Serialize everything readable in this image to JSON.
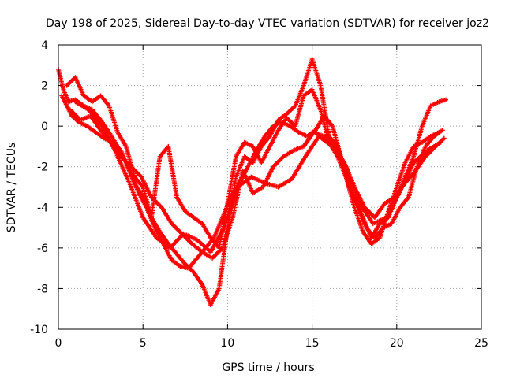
{
  "chart_data": {
    "type": "scatter",
    "title": "Day 198 of 2025, Sidereal Day-to-day VTEC variation (SDTVAR) for receiver joz2",
    "xlabel": "GPS time / hours",
    "ylabel": "SDTVAR / TECUs",
    "xlim": [
      0,
      25
    ],
    "ylim": [
      -10,
      4
    ],
    "xticks": [
      "0",
      "5",
      "10",
      "15",
      "20",
      "25"
    ],
    "yticks": [
      "4",
      "2",
      "0",
      "-2",
      "-4",
      "-6",
      "-8",
      "-10"
    ],
    "grid": true,
    "marker": "+",
    "color": "#ff0000",
    "series": [
      {
        "x": [
          0.0,
          0.3,
          0.6,
          1.0,
          1.5,
          2.0,
          2.5,
          3.0,
          3.5,
          4.0,
          4.5,
          5.0,
          5.5,
          6.0,
          6.5,
          7.0,
          7.5,
          8.0,
          8.5,
          9.0,
          9.5,
          10.0,
          10.5,
          11.0,
          11.5,
          12.0,
          12.5,
          13.0,
          13.5,
          14.0,
          14.5,
          15.0,
          15.5,
          16.0,
          16.5,
          17.0,
          17.5,
          18.0,
          18.5,
          19.0,
          19.5,
          20.0,
          20.5,
          21.0,
          21.5,
          22.0,
          22.5,
          22.9
        ],
        "y": [
          2.8,
          1.8,
          1.2,
          1.3,
          1.0,
          0.8,
          0.3,
          -0.3,
          -1.0,
          -1.8,
          -2.8,
          -3.5,
          -4.5,
          -5.2,
          -5.8,
          -6.3,
          -6.8,
          -7.2,
          -7.8,
          -8.8,
          -8.0,
          -5.0,
          -2.5,
          -1.5,
          -1.8,
          -1.0,
          -0.5,
          0.3,
          0.6,
          1.0,
          2.0,
          3.3,
          2.0,
          -0.5,
          -1.0,
          -2.5,
          -3.5,
          -4.5,
          -5.5,
          -4.8,
          -4.5,
          -3.5,
          -2.5,
          -1.5,
          0.0,
          1.0,
          1.2,
          1.3
        ]
      },
      {
        "x": [
          0.2,
          0.5,
          0.8,
          1.2,
          1.7,
          2.2,
          2.7,
          3.2,
          3.7,
          4.2,
          4.7,
          5.2,
          5.7,
          6.2,
          6.7,
          7.2,
          7.7,
          8.2,
          8.7,
          9.2,
          9.7,
          10.2,
          10.7,
          11.2,
          11.7,
          12.2,
          12.7,
          13.2,
          13.7,
          14.2,
          14.7,
          15.2,
          15.7,
          16.2,
          16.7,
          17.2,
          17.7,
          18.2,
          18.7,
          19.2,
          19.7,
          20.2,
          20.7,
          21.2,
          21.7,
          22.2,
          22.7
        ],
        "y": [
          1.5,
          1.0,
          0.5,
          0.2,
          0.0,
          -0.3,
          -0.6,
          -0.8,
          -1.2,
          -2.2,
          -3.2,
          -4.0,
          -5.0,
          -5.8,
          -6.6,
          -6.9,
          -7.0,
          -6.5,
          -6.0,
          -5.5,
          -4.5,
          -3.5,
          -2.8,
          -2.0,
          -1.2,
          -0.5,
          0.0,
          0.2,
          0.0,
          -0.3,
          -0.5,
          -0.2,
          0.5,
          0.0,
          -1.5,
          -3.0,
          -4.0,
          -5.0,
          -5.5,
          -5.0,
          -4.8,
          -4.0,
          -3.5,
          -2.0,
          -1.0,
          -0.5,
          -0.2
        ]
      },
      {
        "x": [
          0.5,
          1.0,
          1.5,
          2.0,
          2.5,
          3.0,
          3.5,
          4.0,
          4.5,
          5.0,
          5.5,
          6.0,
          6.5,
          7.0,
          7.5,
          8.0,
          8.5,
          9.0,
          9.5,
          10.0,
          10.5,
          11.0,
          11.5,
          12.0,
          12.5,
          13.0,
          13.5,
          14.0,
          14.5,
          15.0,
          15.5,
          16.0,
          16.5,
          17.0,
          17.5,
          18.0,
          18.5,
          19.0,
          19.5,
          20.0,
          20.5,
          21.0,
          21.5,
          22.0,
          22.5
        ],
        "y": [
          2.0,
          2.4,
          1.5,
          1.2,
          1.5,
          1.0,
          -0.3,
          -1.0,
          -2.5,
          -3.0,
          -4.5,
          -1.5,
          -1.0,
          -3.5,
          -4.2,
          -4.5,
          -4.8,
          -5.5,
          -6.0,
          -3.8,
          -1.5,
          -0.8,
          -1.0,
          -1.8,
          -1.0,
          -0.2,
          0.4,
          0.0,
          1.5,
          1.8,
          0.8,
          -0.8,
          -1.5,
          -2.5,
          -4.0,
          -5.2,
          -5.8,
          -5.5,
          -4.2,
          -3.0,
          -1.8,
          -1.0,
          -0.8,
          -0.5,
          -0.3
        ]
      },
      {
        "x": [
          0.7,
          1.3,
          1.9,
          2.5,
          3.1,
          3.7,
          4.3,
          4.9,
          5.5,
          6.1,
          6.7,
          7.3,
          7.9,
          8.5,
          9.1,
          9.7,
          10.3,
          10.9,
          11.5,
          12.1,
          12.7,
          13.3,
          13.9,
          14.5,
          15.1,
          15.7,
          16.3,
          16.9,
          17.5,
          18.1,
          18.7,
          19.3,
          19.9,
          20.5,
          21.1,
          21.7,
          22.3,
          22.8
        ],
        "y": [
          0.8,
          0.3,
          0.5,
          -0.2,
          -0.8,
          -1.5,
          -2.0,
          -2.5,
          -3.5,
          -4.0,
          -4.8,
          -5.3,
          -5.8,
          -6.2,
          -6.5,
          -6.0,
          -4.5,
          -2.2,
          -3.3,
          -3.0,
          -2.0,
          -1.5,
          -1.2,
          -1.0,
          -0.3,
          -0.5,
          -1.0,
          -1.8,
          -3.0,
          -4.0,
          -4.5,
          -3.8,
          -3.5,
          -2.8,
          -2.2,
          -1.5,
          -1.0,
          -0.6
        ]
      },
      {
        "x": [
          1.0,
          1.8,
          2.6,
          3.4,
          4.2,
          5.0,
          5.8,
          6.6,
          7.4,
          8.2,
          9.0,
          9.8,
          10.6,
          11.4,
          12.2,
          13.0,
          13.8,
          14.6,
          15.4,
          16.2,
          17.0,
          17.8,
          18.6,
          19.4,
          20.2,
          21.0,
          21.8,
          22.6
        ],
        "y": [
          1.2,
          0.8,
          0.0,
          -1.3,
          -2.8,
          -4.5,
          -5.5,
          -6.0,
          -5.3,
          -5.6,
          -6.2,
          -5.0,
          -3.0,
          -2.5,
          -2.8,
          -3.0,
          -2.6,
          -1.5,
          -0.5,
          -1.0,
          -2.0,
          -3.8,
          -4.8,
          -4.5,
          -3.2,
          -1.8,
          -1.2,
          -0.8
        ]
      }
    ]
  }
}
